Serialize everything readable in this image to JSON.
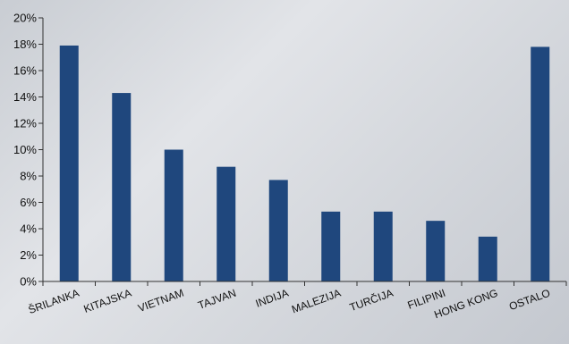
{
  "chart_data": {
    "type": "bar",
    "categories": [
      "ŠRILANKA",
      "KITAJSKA",
      "VIETNAM",
      "TAJVAN",
      "INDIJA",
      "MALEZIJA",
      "TURČIJA",
      "FILIPINI",
      "HONG KONG",
      "OSTALO"
    ],
    "values": [
      17.9,
      14.3,
      10.0,
      8.7,
      7.7,
      5.3,
      5.3,
      4.6,
      3.4,
      17.8
    ],
    "title": "",
    "xlabel": "",
    "ylabel": "",
    "ylim": [
      0,
      20
    ],
    "yticks": [
      "0%",
      "2%",
      "4%",
      "6%",
      "8%",
      "10%",
      "12%",
      "14%",
      "16%",
      "18%",
      "20%"
    ],
    "bar_color": "#1f477d",
    "grid": false,
    "legend": "none"
  }
}
